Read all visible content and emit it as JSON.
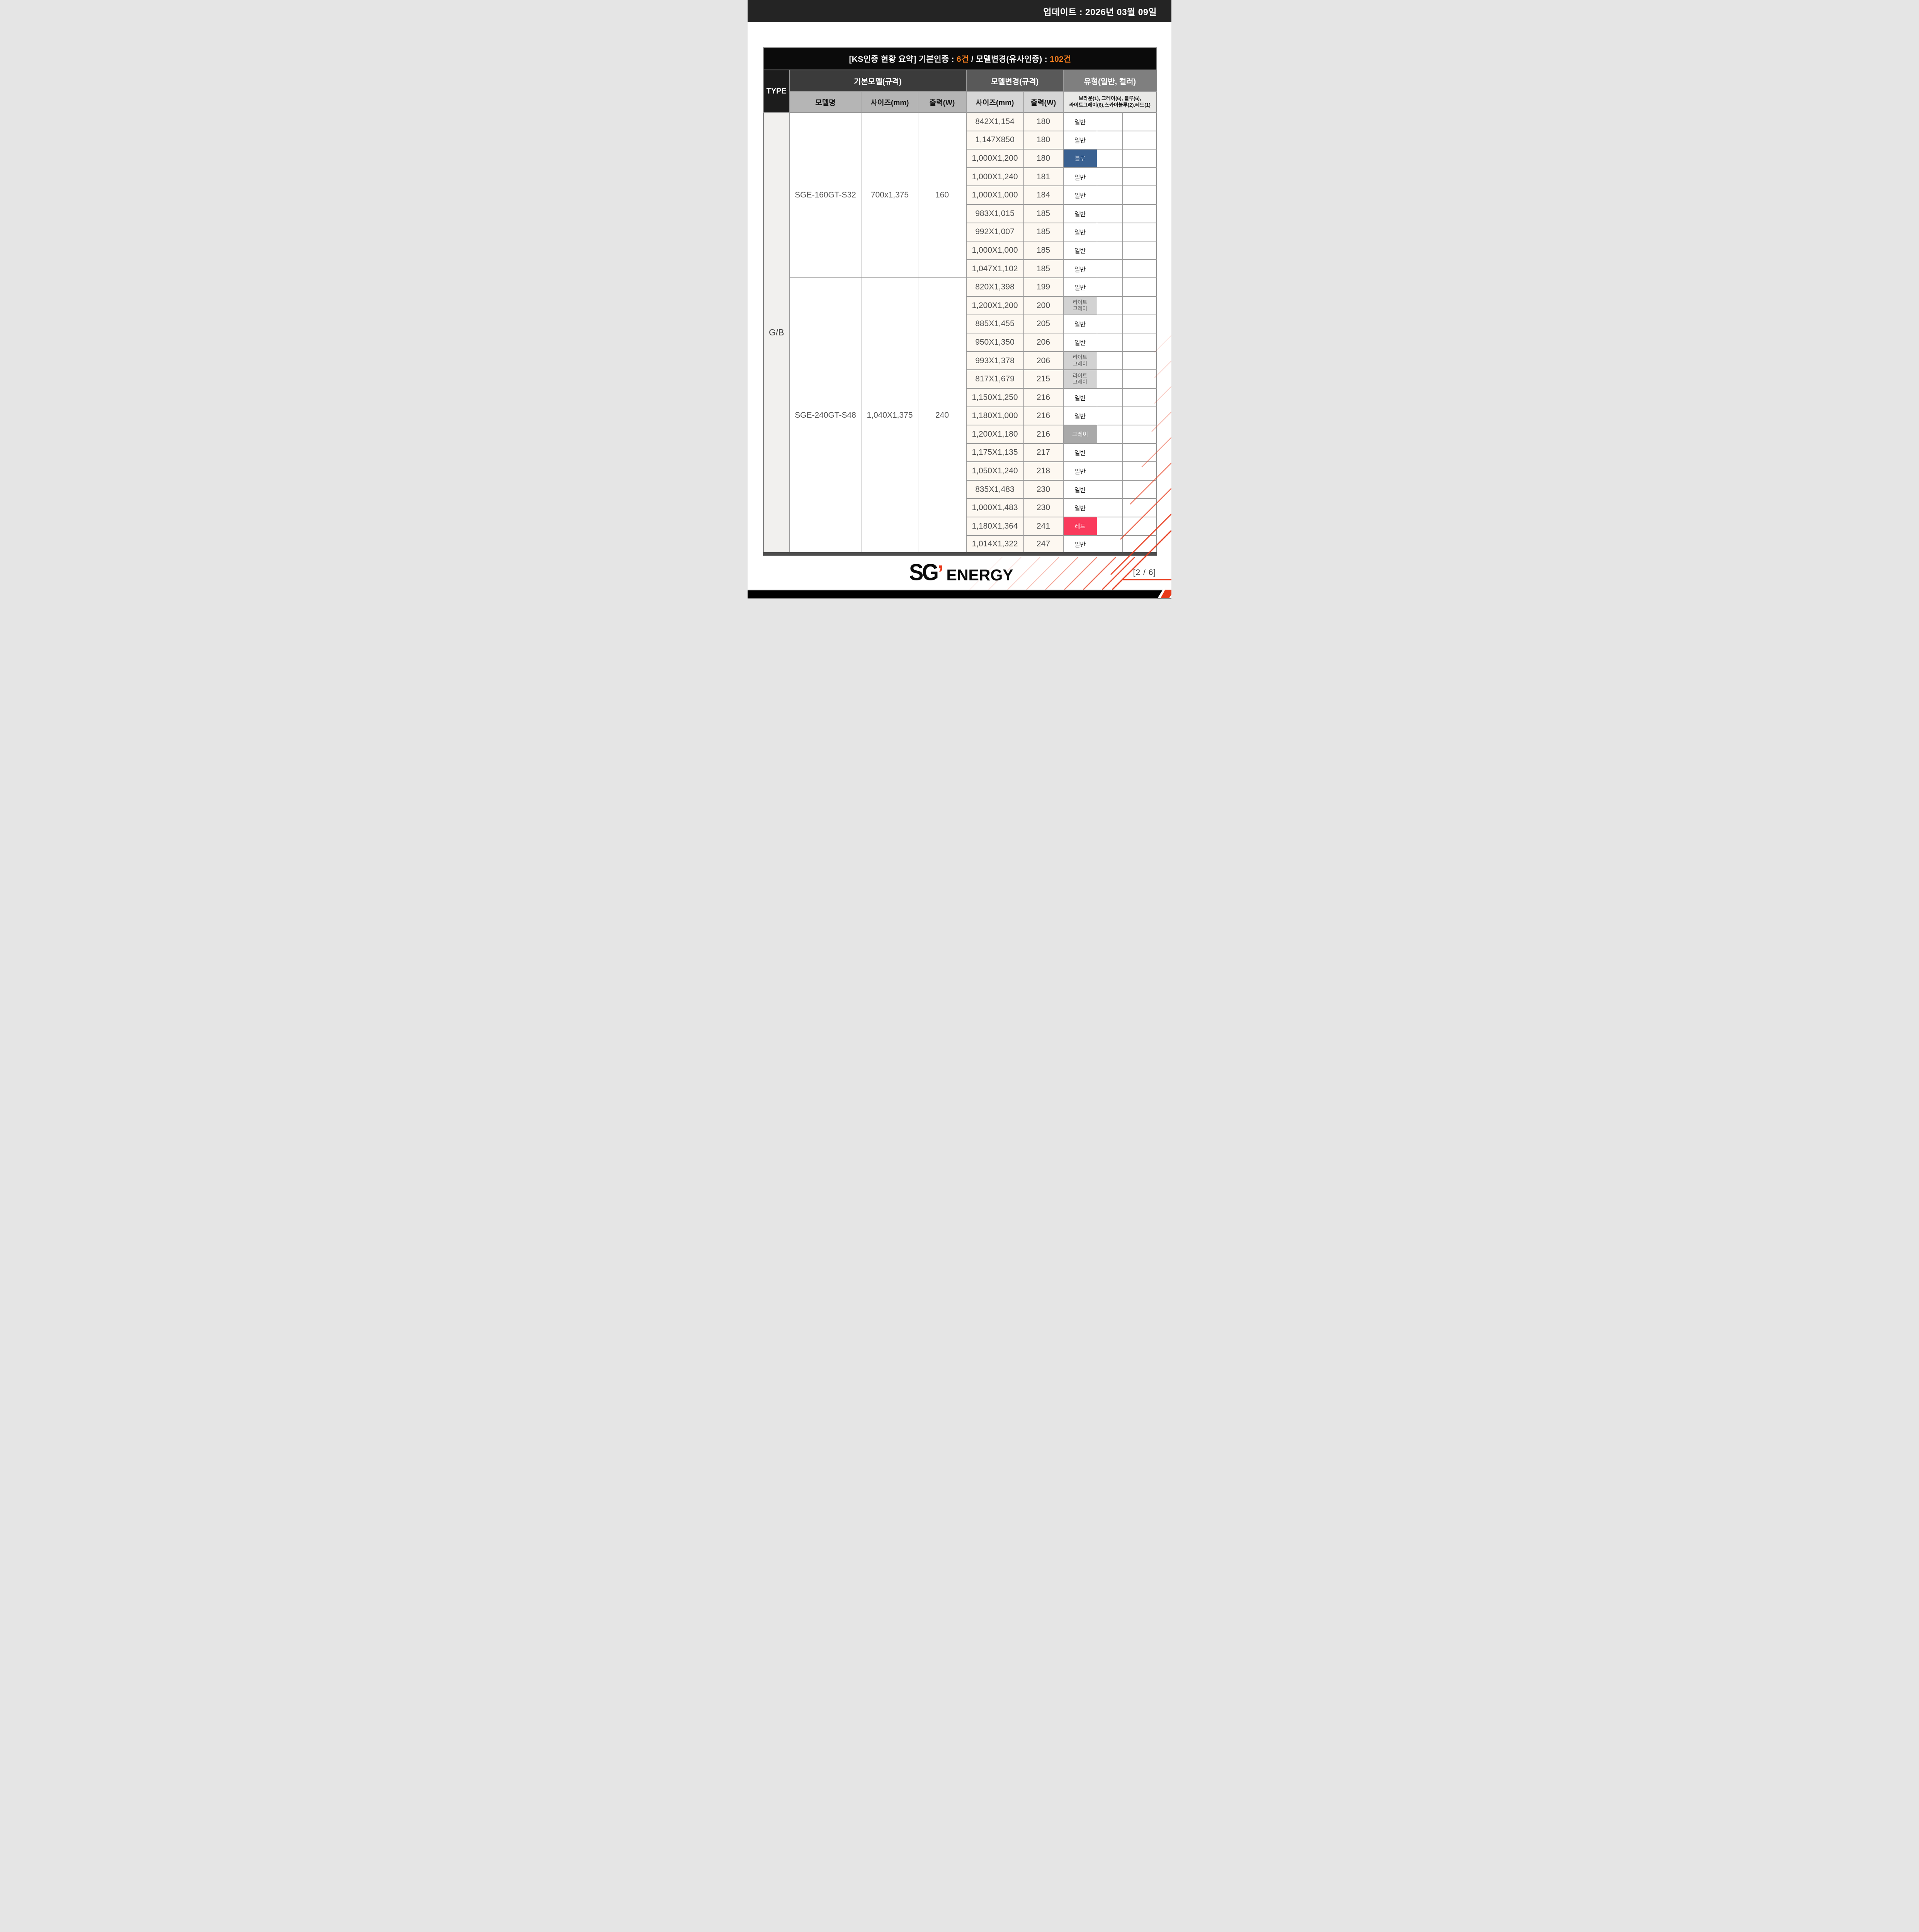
{
  "page": {
    "update_label": "업데이트 : 2026년 03월 09일",
    "page_indicator": "[2 / 6]",
    "logo": {
      "sg": "SG",
      "apostrophe": "’",
      "energy": "ENERGY"
    }
  },
  "colors": {
    "topbar_bg": "#242424",
    "title_bg": "#0B0B0B",
    "accent_orange": "#F07C1E",
    "stripe_red": "#E8391A",
    "header_dark": "#3B3B3B",
    "header_mid": "#595959",
    "header_light": "#7F7F7F",
    "subheader_left_bg": "#B5B5B5",
    "subheader_right_bg": "#D6D6D6",
    "color_summary_bg": "#E9E9E7",
    "type_col_bg": "#F1F0EE",
    "cream_bg": "#FDF8F1",
    "cell_blue": "#3A6191",
    "cell_lightgray": "#D2D2D2",
    "cell_gray": "#A9A9A9",
    "cell_red": "#FA3A5C"
  },
  "table": {
    "title": {
      "prefix": "[KS인증 현황 요약] 기본인증 : ",
      "basic_count": "6건",
      "separator": " / 모델변경(유사인증) : ",
      "variant_count": "102건"
    },
    "headers": {
      "type": "TYPE",
      "base_group": "기본모델(규격)",
      "variant_group": "모델변경(규격)",
      "type_group": "유형(일반, 컬러)",
      "model_name": "모델명",
      "base_size": "사이즈(mm)",
      "base_output": "출력(W)",
      "variant_size": "사이즈(mm)",
      "variant_output": "출력(W)",
      "color_summary_line1": "브라운(1), 그레이(6), 블루(6),",
      "color_summary_line2": "라이트그레이(6),스카이블루(2).레드(1)"
    },
    "type_value": "G/B",
    "groups": [
      {
        "model": "SGE-160GT-S32",
        "size": "700x1,375",
        "output": "160",
        "variants": [
          {
            "size": "842X1,154",
            "output": "180",
            "label": "일반",
            "style": "plain"
          },
          {
            "size": "1,147X850",
            "output": "180",
            "label": "일반",
            "style": "plain"
          },
          {
            "size": "1,000X1,200",
            "output": "180",
            "label": "블루",
            "style": "blue"
          },
          {
            "size": "1,000X1,240",
            "output": "181",
            "label": "일반",
            "style": "plain"
          },
          {
            "size": "1,000X1,000",
            "output": "184",
            "label": "일반",
            "style": "plain"
          },
          {
            "size": "983X1,015",
            "output": "185",
            "label": "일반",
            "style": "plain"
          },
          {
            "size": "992X1,007",
            "output": "185",
            "label": "일반",
            "style": "plain"
          },
          {
            "size": "1,000X1,000",
            "output": "185",
            "label": "일반",
            "style": "plain"
          },
          {
            "size": "1,047X1,102",
            "output": "185",
            "label": "일반",
            "style": "plain"
          }
        ]
      },
      {
        "model": "SGE-240GT-S48",
        "size": "1,040X1,375",
        "output": "240",
        "variants": [
          {
            "size": "820X1,398",
            "output": "199",
            "label": "일반",
            "style": "plain"
          },
          {
            "size": "1,200X1,200",
            "output": "200",
            "label": "라이트\n그레이",
            "style": "lightgray"
          },
          {
            "size": "885X1,455",
            "output": "205",
            "label": "일반",
            "style": "plain"
          },
          {
            "size": "950X1,350",
            "output": "206",
            "label": "일반",
            "style": "plain"
          },
          {
            "size": "993X1,378",
            "output": "206",
            "label": "라이트\n그레이",
            "style": "lightgray"
          },
          {
            "size": "817X1,679",
            "output": "215",
            "label": "라이트\n그레이",
            "style": "lightgray"
          },
          {
            "size": "1,150X1,250",
            "output": "216",
            "label": "일반",
            "style": "plain"
          },
          {
            "size": "1,180X1,000",
            "output": "216",
            "label": "일반",
            "style": "plain"
          },
          {
            "size": "1,200X1,180",
            "output": "216",
            "label": "그레이",
            "style": "gray"
          },
          {
            "size": "1,175X1,135",
            "output": "217",
            "label": "일반",
            "style": "plain"
          },
          {
            "size": "1,050X1,240",
            "output": "218",
            "label": "일반",
            "style": "plain"
          },
          {
            "size": "835X1,483",
            "output": "230",
            "label": "일반",
            "style": "plain"
          },
          {
            "size": "1,000X1,483",
            "output": "230",
            "label": "일반",
            "style": "plain"
          },
          {
            "size": "1,180X1,364",
            "output": "241",
            "label": "레드",
            "style": "red"
          },
          {
            "size": "1,014X1,322",
            "output": "247",
            "label": "일반",
            "style": "plain"
          }
        ]
      }
    ]
  }
}
